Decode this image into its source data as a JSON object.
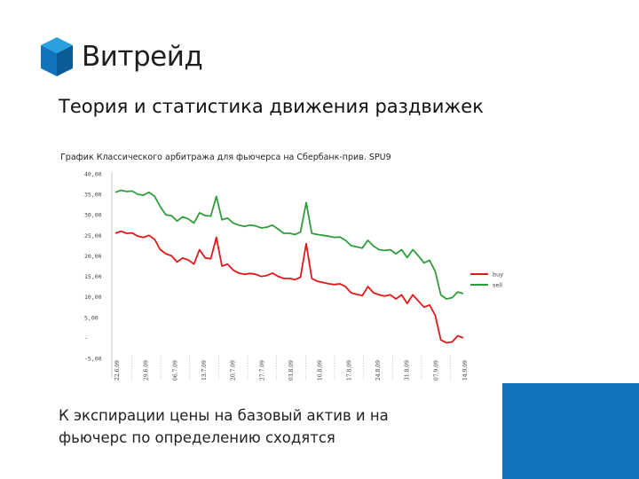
{
  "brand": {
    "name": "Витрейд",
    "colors": {
      "cube_top": "#2aa0e0",
      "cube_left": "#0f74bc",
      "cube_right": "#0b5c96",
      "corner": "#0f74bc"
    }
  },
  "slide": {
    "title": "Теория и статистика движения раздвижек",
    "bottom_line1": "К экспирации цены на базовый актив и на",
    "bottom_line2": "фьючерс по определению сходятся"
  },
  "chart_data": {
    "type": "line",
    "title": "График Классического арбитража для фьючерса на Сбербанк-прив. SPU9",
    "xlabel": "",
    "ylabel": "",
    "ylim": [
      -5,
      40
    ],
    "yticks": [
      "40,00",
      "35,00",
      "30,00",
      "25,00",
      "20,00",
      "15,00",
      "10,00",
      "5,00",
      "-",
      "-5,00"
    ],
    "yticks_values": [
      40,
      35,
      30,
      25,
      20,
      15,
      10,
      5,
      0,
      -5
    ],
    "xticks": [
      "22.6.09",
      "29.6.09",
      "06.7.09",
      "13.7.09",
      "20.7.09",
      "27.7.09",
      "03.8.09",
      "10.8.09",
      "17.8.09",
      "24.8.09",
      "31.8.09",
      "07.9.09",
      "14.9.09"
    ],
    "x_count": 63,
    "legend_position": "right",
    "series": [
      {
        "name": "sell",
        "color": "#2e9e3a",
        "values": [
          35.5,
          36,
          35.7,
          35.8,
          35,
          34.8,
          35.5,
          34.5,
          32,
          30,
          29.8,
          28.5,
          29.5,
          29,
          28,
          30.5,
          29.8,
          29.7,
          34.5,
          28.8,
          29.2,
          28,
          27.5,
          27.2,
          27.5,
          27.3,
          26.8,
          27,
          27.5,
          26.5,
          25.5,
          25.5,
          25.2,
          25.8,
          33,
          25.5,
          25.2,
          25,
          24.8,
          24.5,
          24.6,
          23.8,
          22.5,
          22.2,
          21.9,
          23.8,
          22.4,
          21.5,
          21.3,
          21.5,
          20.5,
          21.5,
          19.6,
          21.5,
          20,
          18.3,
          18.9,
          16.2,
          10.5,
          9.5,
          9.8,
          11.2,
          10.8
        ]
      },
      {
        "name": "buy",
        "color": "#e0191b",
        "values": [
          25.5,
          26,
          25.5,
          25.6,
          24.8,
          24.5,
          25,
          24,
          21.5,
          20.5,
          20,
          18.5,
          19.5,
          19,
          18,
          21.5,
          19.5,
          19.3,
          24.5,
          17.5,
          18,
          16.5,
          15.8,
          15.5,
          15.7,
          15.5,
          15,
          15.2,
          15.8,
          15,
          14.5,
          14.5,
          14.2,
          14.8,
          23,
          14.5,
          13.8,
          13.5,
          13.2,
          13,
          13.2,
          12.5,
          11,
          10.6,
          10.3,
          12.5,
          11,
          10.5,
          10.2,
          10.5,
          9.5,
          10.5,
          8.4,
          10.5,
          9,
          7.5,
          8,
          5.5,
          -0.5,
          -1.2,
          -1,
          0.5,
          0
        ]
      }
    ]
  }
}
